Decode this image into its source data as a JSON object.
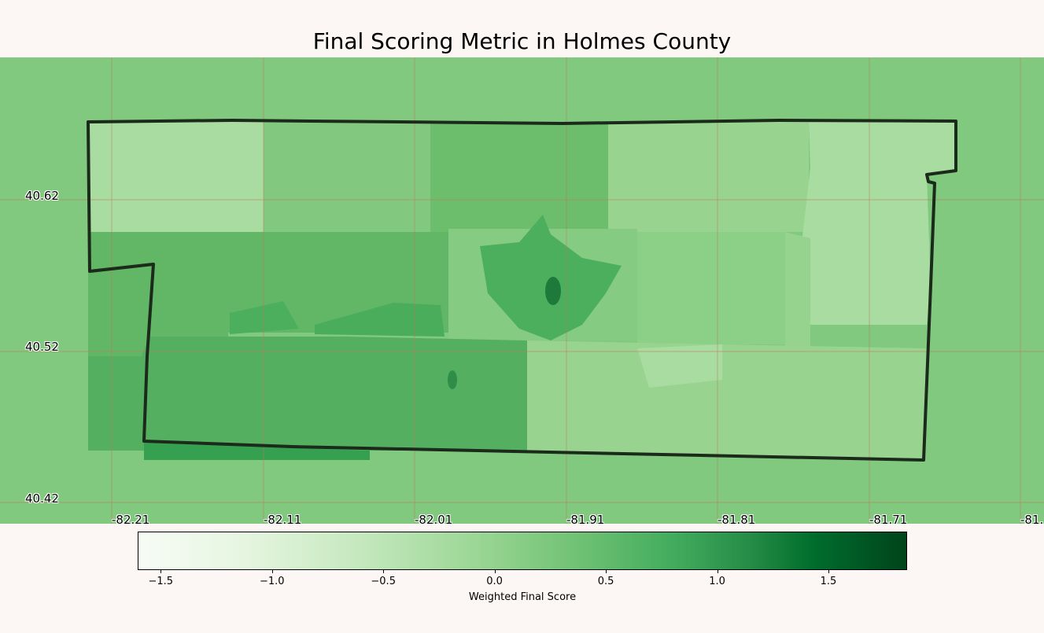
{
  "map": {
    "title": "Final Scoring Metric in Holmes County",
    "latitude_labels": [
      "40.62",
      "40.52",
      "40.42"
    ],
    "longitude_labels": [
      "-82.21",
      "-82.11",
      "-82.01",
      "-81.91",
      "-81.81",
      "-81.71",
      "-81."
    ],
    "boundary_color": "#1b2a1b",
    "gridline_color": "#c0785a"
  },
  "colorbar": {
    "label": "Weighted Final Score",
    "colormap": "Greens",
    "tick_labels": [
      "−1.5",
      "−1.0",
      "−0.5",
      "0.0",
      "0.5",
      "1.0",
      "1.5"
    ],
    "range": [
      -1.6,
      1.85
    ]
  }
}
